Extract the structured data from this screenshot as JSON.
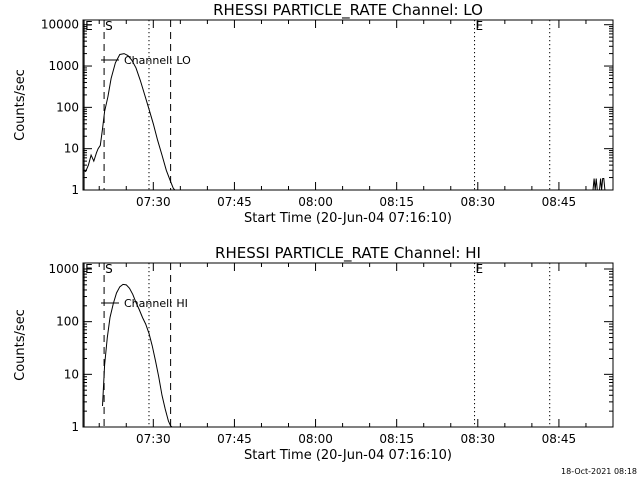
{
  "footer": {
    "timestamp": "18-Oct-2021 08:18"
  },
  "chart_data": [
    {
      "type": "line",
      "title": "RHESSI PARTICLE_RATE Channel: LO",
      "xlabel": "Start Time (20-Jun-04 07:16:10)",
      "ylabel": "Counts/sec",
      "xlim": [
        437.0,
        535.0
      ],
      "ylim": [
        1,
        13000
      ],
      "yscale": "log",
      "xticks": [
        {
          "v": 450,
          "label": "07:30"
        },
        {
          "v": 465,
          "label": "07:45"
        },
        {
          "v": 480,
          "label": "08:00"
        },
        {
          "v": 495,
          "label": "08:15"
        },
        {
          "v": 510,
          "label": "08:30"
        },
        {
          "v": 525,
          "label": "08:45"
        }
      ],
      "yticks": [
        {
          "v": 1,
          "label": "1"
        },
        {
          "v": 10,
          "label": "10"
        },
        {
          "v": 100,
          "label": "100"
        },
        {
          "v": 1000,
          "label": "1000"
        },
        {
          "v": 10000,
          "label": "10000"
        }
      ],
      "legend": "Channel: LO",
      "markers": [
        {
          "x": 437.2,
          "label": "E",
          "style": "solid"
        },
        {
          "x": 440.9,
          "label": "S",
          "style": "dashed"
        },
        {
          "x": 449.2,
          "label": "",
          "style": "dotted"
        },
        {
          "x": 453.2,
          "label": "",
          "style": "dashed"
        },
        {
          "x": 509.4,
          "label": "E",
          "style": "dotted"
        },
        {
          "x": 523.3,
          "label": "",
          "style": "dotted"
        }
      ],
      "series": [
        {
          "name": "Channel: LO",
          "segments": [
            {
              "x": [
                437.0,
                437.5,
                438.0,
                438.5,
                439.0,
                439.5,
                439.8,
                440.2,
                440.6,
                441.0,
                441.6,
                442.2,
                443.0,
                443.8,
                444.6,
                445.3,
                446.0,
                446.8,
                447.6,
                448.4,
                449.2,
                450.0,
                450.8,
                451.6,
                452.4,
                453.2,
                453.7,
                454.0
              ],
              "y": [
                3,
                2.8,
                4,
                7,
                5,
                8,
                10,
                12,
                30,
                80,
                180,
                500,
                1200,
                1900,
                2000,
                1800,
                1400,
                900,
                450,
                200,
                90,
                40,
                16,
                7,
                3,
                1.6,
                1.1,
                1
              ]
            },
            {
              "x": [
                531.3,
                531.5,
                531.7,
                531.9,
                532.1,
                532.3,
                532.5,
                532.7,
                532.9,
                533.1,
                533.3,
                533.5,
                533.7
              ],
              "y": [
                1,
                1.9,
                1,
                1.9,
                1,
                1,
                1,
                1.9,
                1,
                1.9,
                1.9,
                1,
                1
              ]
            }
          ]
        }
      ]
    },
    {
      "type": "line",
      "title": "RHESSI PARTICLE_RATE Channel: HI",
      "xlabel": "Start Time (20-Jun-04 07:16:10)",
      "ylabel": "Counts/sec",
      "xlim": [
        437.0,
        535.0
      ],
      "ylim": [
        1,
        1300
      ],
      "yscale": "log",
      "xticks": [
        {
          "v": 450,
          "label": "07:30"
        },
        {
          "v": 465,
          "label": "07:45"
        },
        {
          "v": 480,
          "label": "08:00"
        },
        {
          "v": 495,
          "label": "08:15"
        },
        {
          "v": 510,
          "label": "08:30"
        },
        {
          "v": 525,
          "label": "08:45"
        }
      ],
      "yticks": [
        {
          "v": 1,
          "label": "1"
        },
        {
          "v": 10,
          "label": "10"
        },
        {
          "v": 100,
          "label": "100"
        },
        {
          "v": 1000,
          "label": "1000"
        }
      ],
      "legend": "Channel: HI",
      "markers": [
        {
          "x": 437.2,
          "label": "E",
          "style": "solid"
        },
        {
          "x": 440.9,
          "label": "S",
          "style": "dashed"
        },
        {
          "x": 449.2,
          "label": "",
          "style": "dotted"
        },
        {
          "x": 453.2,
          "label": "",
          "style": "dashed"
        },
        {
          "x": 509.4,
          "label": "E",
          "style": "dotted"
        },
        {
          "x": 523.3,
          "label": "",
          "style": "dotted"
        }
      ],
      "series": [
        {
          "name": "Channel: HI",
          "segments": [
            {
              "x": [
                440.6,
                441.0,
                441.5,
                442.0,
                442.6,
                443.2,
                443.8,
                444.4,
                445.0,
                445.6,
                446.2,
                446.8,
                447.4,
                448.0,
                448.6,
                449.2,
                449.8,
                450.4,
                451.0,
                451.6,
                452.2,
                452.8,
                453.2,
                453.5
              ],
              "y": [
                2.5,
                15,
                50,
                120,
                220,
                350,
                460,
                510,
                500,
                430,
                330,
                230,
                170,
                120,
                90,
                60,
                35,
                18,
                9,
                4,
                2.2,
                1.3,
                1.05,
                1
              ]
            }
          ]
        }
      ]
    }
  ]
}
